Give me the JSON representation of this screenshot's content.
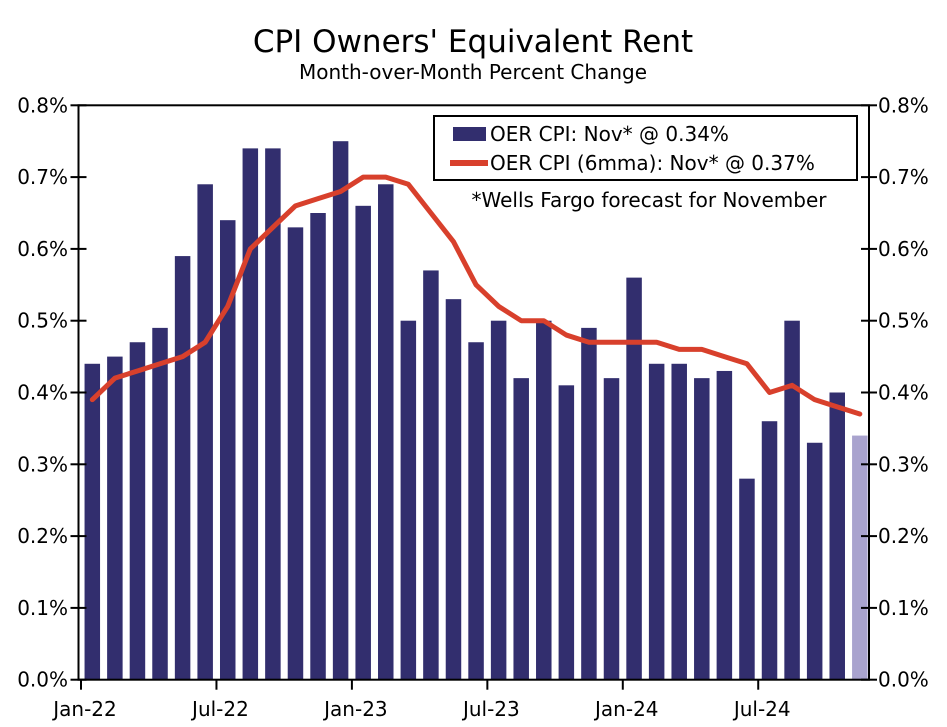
{
  "title": "CPI Owners' Equivalent Rent",
  "subtitle": "Month-over-Month Percent Change",
  "note": "*Wells Fargo forecast for November",
  "legend": {
    "bar_label": "OER CPI: Nov* @ 0.34%",
    "line_label": "OER CPI (6mma): Nov* @ 0.37%"
  },
  "colors": {
    "bar": "#322E6E",
    "bar_forecast": "#A9A3CE",
    "line": "#D8402C",
    "axis": "#000000",
    "background": "#FFFFFF"
  },
  "chart_data": {
    "type": "bar+line",
    "title": "CPI Owners' Equivalent Rent",
    "subtitle": "Month-over-Month Percent Change",
    "unit": "percent",
    "categories": [
      "Jan-22",
      "Feb-22",
      "Mar-22",
      "Apr-22",
      "May-22",
      "Jun-22",
      "Jul-22",
      "Aug-22",
      "Sep-22",
      "Oct-22",
      "Nov-22",
      "Dec-22",
      "Jan-23",
      "Feb-23",
      "Mar-23",
      "Apr-23",
      "May-23",
      "Jun-23",
      "Jul-23",
      "Aug-23",
      "Sep-23",
      "Oct-23",
      "Nov-23",
      "Dec-23",
      "Jan-24",
      "Feb-24",
      "Mar-24",
      "Apr-24",
      "May-24",
      "Jun-24",
      "Jul-24",
      "Aug-24",
      "Sep-24",
      "Oct-24",
      "Nov-24"
    ],
    "series": [
      {
        "name": "OER CPI",
        "type": "bar",
        "values": [
          0.44,
          0.45,
          0.47,
          0.49,
          0.59,
          0.69,
          0.64,
          0.74,
          0.74,
          0.63,
          0.65,
          0.75,
          0.66,
          0.69,
          0.5,
          0.57,
          0.53,
          0.47,
          0.5,
          0.42,
          0.5,
          0.41,
          0.49,
          0.42,
          0.56,
          0.44,
          0.44,
          0.42,
          0.43,
          0.28,
          0.36,
          0.5,
          0.33,
          0.4,
          0.34
        ]
      },
      {
        "name": "OER CPI (6mma)",
        "type": "line",
        "values": [
          0.39,
          0.42,
          0.43,
          0.44,
          0.45,
          0.47,
          0.52,
          0.6,
          0.63,
          0.66,
          0.67,
          0.68,
          0.7,
          0.7,
          0.69,
          0.65,
          0.61,
          0.55,
          0.52,
          0.5,
          0.5,
          0.48,
          0.47,
          0.47,
          0.47,
          0.47,
          0.46,
          0.46,
          0.45,
          0.44,
          0.4,
          0.41,
          0.39,
          0.38,
          0.37
        ]
      }
    ],
    "forecast_index": 34,
    "forecast_category": "Nov-24",
    "x_tick_labels": [
      "Jan-22",
      "Jul-22",
      "Jan-23",
      "Jul-23",
      "Jan-24",
      "Jul-24"
    ],
    "x_tick_month_indices": [
      0,
      6,
      12,
      18,
      24,
      30
    ],
    "y_tick_labels": [
      "0.0%",
      "0.1%",
      "0.2%",
      "0.3%",
      "0.4%",
      "0.5%",
      "0.6%",
      "0.7%",
      "0.8%"
    ],
    "y_tick_values": [
      0.0,
      0.1,
      0.2,
      0.3,
      0.4,
      0.5,
      0.6,
      0.7,
      0.8
    ],
    "ylim": [
      0.0,
      0.8
    ],
    "y_axis_sides": [
      "left",
      "right"
    ],
    "grid": false,
    "legend_position": "top-right-inside"
  }
}
